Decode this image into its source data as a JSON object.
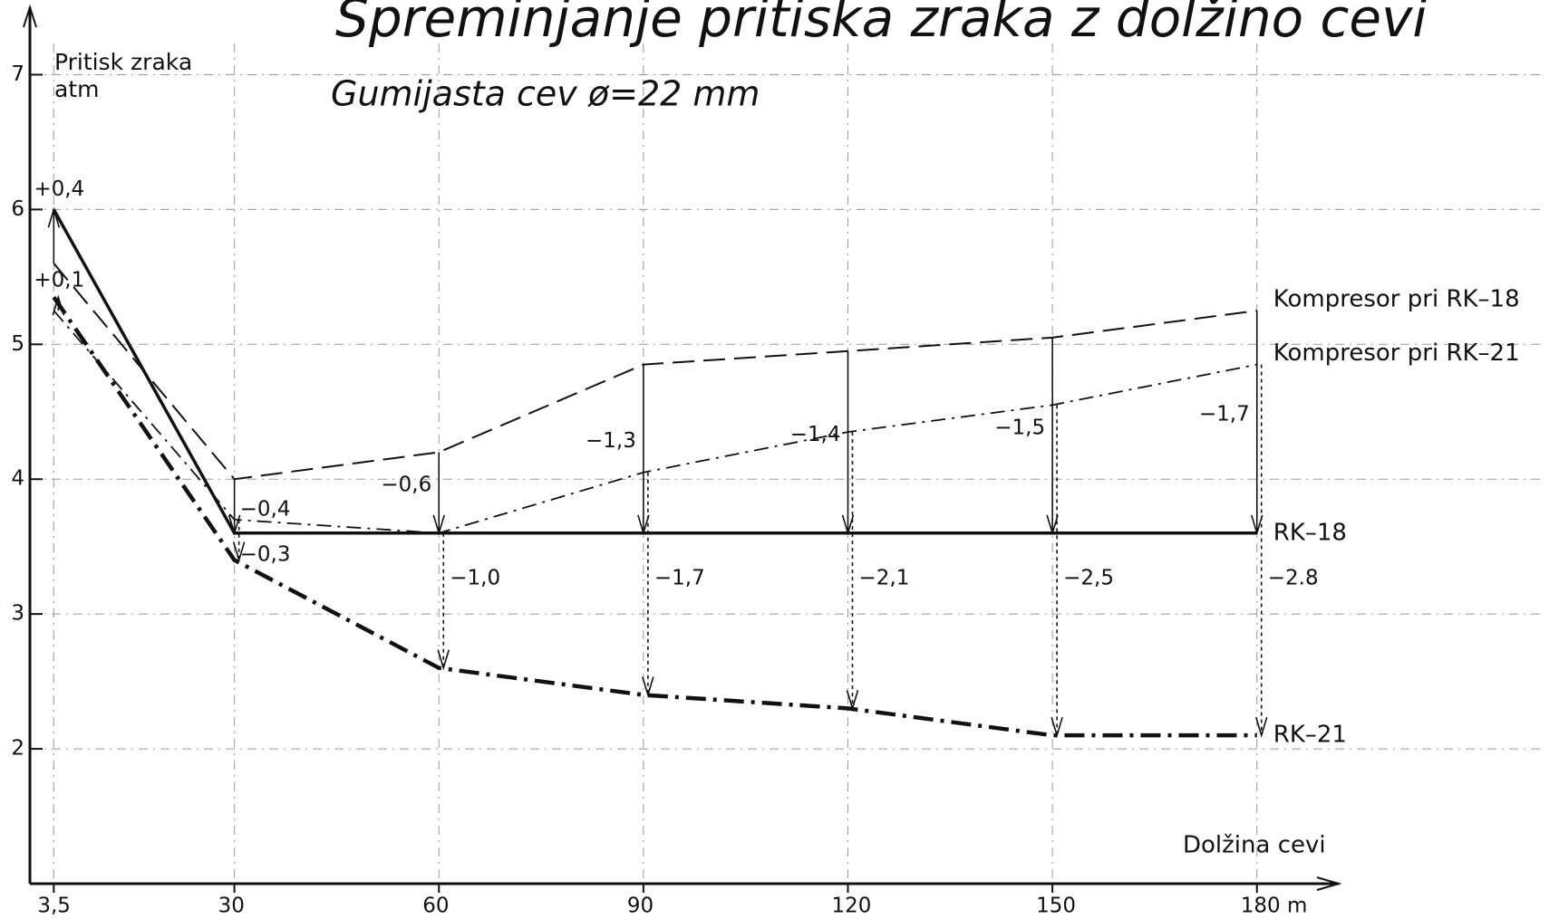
{
  "chart_data": {
    "type": "line",
    "title": "Spreminjanje pritiska zraka z dolžino cevi",
    "subtitle": "Gumijasta cev ø=22 mm",
    "y_label": "Pritisk zraka",
    "y_unit": "atm",
    "x_label": "Dolžina cevi",
    "x": [
      3.5,
      30,
      60,
      90,
      120,
      150,
      180
    ],
    "xlim": [
      0,
      192
    ],
    "xticks": [
      {
        "value": 3.5,
        "label": "3,5"
      },
      30,
      60,
      90,
      120,
      150,
      {
        "value": 180,
        "label": "180 m"
      }
    ],
    "ylim": [
      1,
      7.5
    ],
    "yticks": [
      2,
      3,
      4,
      5,
      6,
      7
    ],
    "grid": true,
    "series": [
      {
        "name": "RK–18",
        "color": "#111111",
        "line_style": "solid",
        "values": [
          6.0,
          3.6,
          3.6,
          3.6,
          3.6,
          3.6,
          3.6
        ]
      },
      {
        "name": "RK–21",
        "color": "#111111",
        "line_style": "dashdot-bold",
        "values": [
          5.35,
          3.4,
          2.6,
          2.4,
          2.3,
          2.1,
          2.1
        ]
      },
      {
        "name": "Kompresor pri RK–18",
        "color": "#111111",
        "line_style": "dashed",
        "values": [
          5.6,
          4.0,
          4.2,
          4.85,
          4.95,
          5.05,
          5.25
        ]
      },
      {
        "name": "Kompresor pri RK–21",
        "color": "#111111",
        "line_style": "dashdot",
        "values": [
          5.25,
          3.7,
          3.6,
          4.05,
          4.35,
          4.55,
          4.85
        ]
      }
    ],
    "rk18_diff_labels": [
      "+0,4",
      "−0,4",
      "−0,6",
      "−1,3",
      "−1,4",
      "−1,5",
      "−1,7"
    ],
    "rk21_diff_labels": [
      "+0,1",
      "−0,3",
      "−1,0",
      "−1,7",
      "−2,1",
      "−2,5",
      "−2.8"
    ]
  }
}
